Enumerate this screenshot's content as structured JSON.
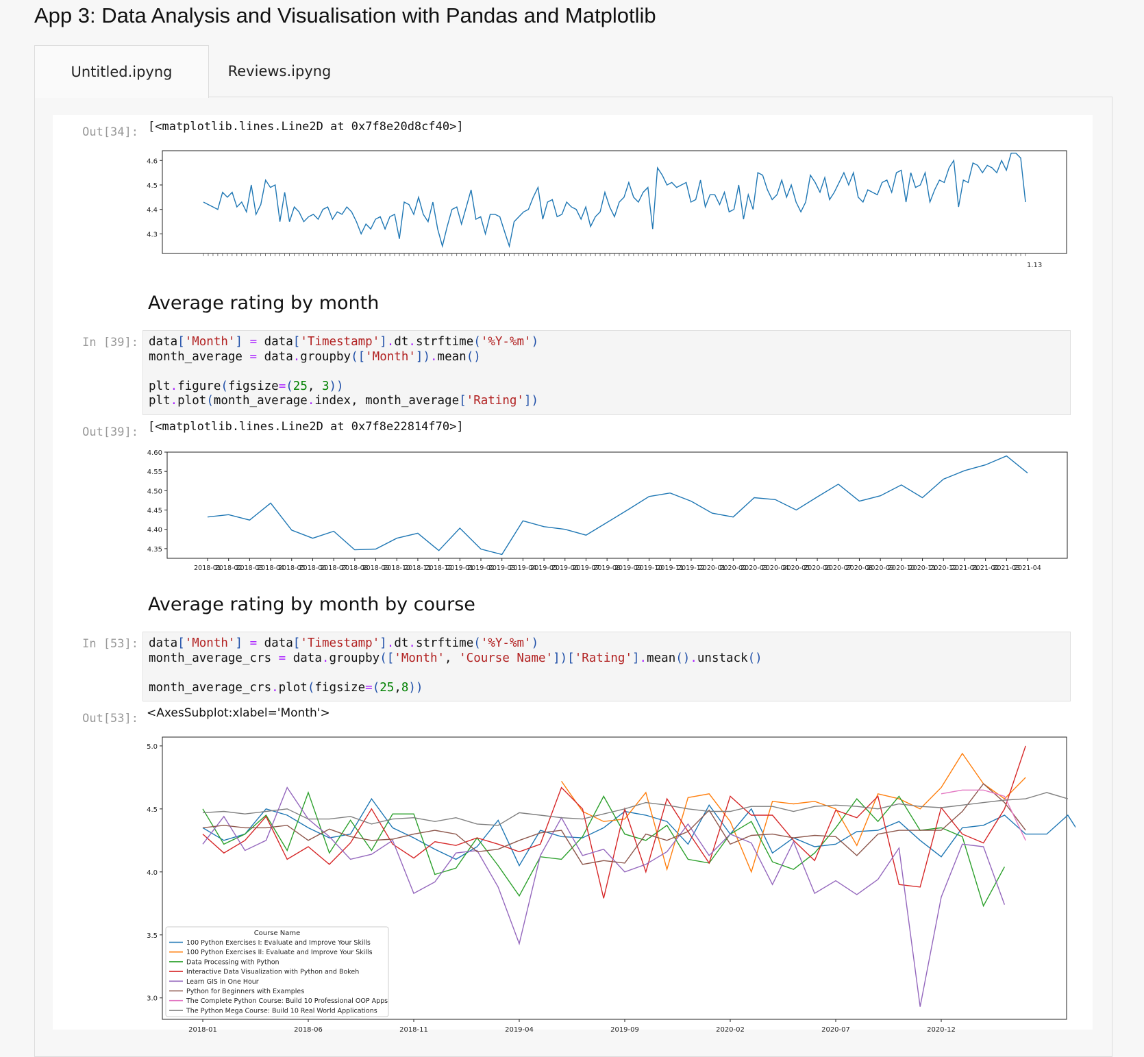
{
  "app_title": "App 3: Data Analysis and Visualisation with Pandas and Matplotlib",
  "tabs": [
    {
      "label": "Untitled.ipyng",
      "active": true
    },
    {
      "label": "Reviews.ipyng",
      "active": false
    }
  ],
  "cells": {
    "out34": {
      "prompt": "Out[34]:",
      "text": "[<matplotlib.lines.Line2D at 0x7f8e20d8cf40>]"
    },
    "heading1": "Average rating by month",
    "in39": {
      "prompt": "In [39]:",
      "code": [
        [
          [
            "k",
            "data"
          ],
          [
            "p",
            "["
          ],
          [
            "s",
            "'Month'"
          ],
          [
            "p",
            "]"
          ],
          [
            "k",
            " "
          ],
          [
            "o",
            "="
          ],
          [
            "k",
            " data"
          ],
          [
            "p",
            "["
          ],
          [
            "s",
            "'Timestamp'"
          ],
          [
            "p",
            "]"
          ],
          [
            "o",
            "."
          ],
          [
            "k",
            "dt"
          ],
          [
            "o",
            "."
          ],
          [
            "k",
            "strftime"
          ],
          [
            "p",
            "("
          ],
          [
            "s",
            "'%Y-%m'"
          ],
          [
            "p",
            ")"
          ]
        ],
        [
          [
            "k",
            "month_average "
          ],
          [
            "o",
            "="
          ],
          [
            "k",
            " data"
          ],
          [
            "o",
            "."
          ],
          [
            "k",
            "groupby"
          ],
          [
            "p",
            "(["
          ],
          [
            "s",
            "'Month'"
          ],
          [
            "p",
            "])"
          ],
          [
            "o",
            "."
          ],
          [
            "k",
            "mean"
          ],
          [
            "p",
            "()"
          ]
        ],
        [],
        [
          [
            "k",
            "plt"
          ],
          [
            "o",
            "."
          ],
          [
            "k",
            "figure"
          ],
          [
            "p",
            "("
          ],
          [
            "k",
            "figsize"
          ],
          [
            "o",
            "="
          ],
          [
            "p",
            "("
          ],
          [
            "n",
            "25"
          ],
          [
            "k",
            ", "
          ],
          [
            "n",
            "3"
          ],
          [
            "p",
            "))"
          ]
        ],
        [
          [
            "k",
            "plt"
          ],
          [
            "o",
            "."
          ],
          [
            "k",
            "plot"
          ],
          [
            "p",
            "("
          ],
          [
            "k",
            "month_average"
          ],
          [
            "o",
            "."
          ],
          [
            "k",
            "index"
          ],
          [
            "k",
            ", month_average"
          ],
          [
            "p",
            "["
          ],
          [
            "s",
            "'Rating'"
          ],
          [
            "p",
            "])"
          ]
        ]
      ]
    },
    "out39": {
      "prompt": "Out[39]:",
      "text": "[<matplotlib.lines.Line2D at 0x7f8e22814f70>]"
    },
    "heading2": "Average rating by month by course",
    "in53": {
      "prompt": "In [53]:",
      "code": [
        [
          [
            "k",
            "data"
          ],
          [
            "p",
            "["
          ],
          [
            "s",
            "'Month'"
          ],
          [
            "p",
            "]"
          ],
          [
            "k",
            " "
          ],
          [
            "o",
            "="
          ],
          [
            "k",
            " data"
          ],
          [
            "p",
            "["
          ],
          [
            "s",
            "'Timestamp'"
          ],
          [
            "p",
            "]"
          ],
          [
            "o",
            "."
          ],
          [
            "k",
            "dt"
          ],
          [
            "o",
            "."
          ],
          [
            "k",
            "strftime"
          ],
          [
            "p",
            "("
          ],
          [
            "s",
            "'%Y-%m'"
          ],
          [
            "p",
            ")"
          ]
        ],
        [
          [
            "k",
            "month_average_crs "
          ],
          [
            "o",
            "="
          ],
          [
            "k",
            " data"
          ],
          [
            "o",
            "."
          ],
          [
            "k",
            "groupby"
          ],
          [
            "p",
            "(["
          ],
          [
            "s",
            "'Month'"
          ],
          [
            "k",
            ", "
          ],
          [
            "s",
            "'Course Name'"
          ],
          [
            "p",
            "])["
          ],
          [
            "s",
            "'Rating'"
          ],
          [
            "p",
            "]"
          ],
          [
            "o",
            "."
          ],
          [
            "k",
            "mean"
          ],
          [
            "p",
            "()"
          ],
          [
            "o",
            "."
          ],
          [
            "k",
            "unstack"
          ],
          [
            "p",
            "()"
          ]
        ],
        [],
        [
          [
            "k",
            "month_average_crs"
          ],
          [
            "o",
            "."
          ],
          [
            "k",
            "plot"
          ],
          [
            "p",
            "("
          ],
          [
            "k",
            "figsize"
          ],
          [
            "o",
            "="
          ],
          [
            "p",
            "("
          ],
          [
            "n",
            "25"
          ],
          [
            "k",
            ","
          ],
          [
            "n",
            "8"
          ],
          [
            "p",
            "))"
          ]
        ]
      ]
    },
    "out53": {
      "prompt": "Out[53]:",
      "text": "<AxesSubplot:xlabel='Month'>"
    }
  },
  "colors": {
    "c0": "#1f77b4",
    "c1": "#ff7f0e",
    "c2": "#2ca02c",
    "c3": "#d62728",
    "c4": "#9467bd",
    "c5": "#8c564b",
    "c6": "#e377c2",
    "c7": "#7f7f7f"
  },
  "chart_data": [
    {
      "type": "line",
      "title": "",
      "x_tick_labels_note": "",
      "yticks": [
        4.3,
        4.4,
        4.5,
        4.6
      ],
      "ylim": [
        4.22,
        4.64
      ],
      "values": [
        4.43,
        4.42,
        4.41,
        4.4,
        4.47,
        4.45,
        4.47,
        4.41,
        4.43,
        4.39,
        4.5,
        4.38,
        4.42,
        4.52,
        4.49,
        4.5,
        4.35,
        4.47,
        4.35,
        4.41,
        4.39,
        4.35,
        4.37,
        4.38,
        4.36,
        4.4,
        4.41,
        4.36,
        4.39,
        4.38,
        4.41,
        4.39,
        4.35,
        4.3,
        4.34,
        4.32,
        4.36,
        4.37,
        4.32,
        4.37,
        4.38,
        4.28,
        4.43,
        4.42,
        4.38,
        4.45,
        4.38,
        4.35,
        4.43,
        4.32,
        4.25,
        4.33,
        4.4,
        4.41,
        4.34,
        4.41,
        4.48,
        4.36,
        4.37,
        4.3,
        4.38,
        4.38,
        4.37,
        4.31,
        4.25,
        4.35,
        4.37,
        4.39,
        4.4,
        4.45,
        4.49,
        4.36,
        4.43,
        4.44,
        4.37,
        4.38,
        4.43,
        4.41,
        4.4,
        4.36,
        4.41,
        4.33,
        4.37,
        4.39,
        4.47,
        4.41,
        4.37,
        4.43,
        4.45,
        4.51,
        4.45,
        4.43,
        4.47,
        4.49,
        4.32,
        4.57,
        4.54,
        4.5,
        4.51,
        4.49,
        4.5,
        4.51,
        4.43,
        4.44,
        4.52,
        4.41,
        4.46,
        4.46,
        4.42,
        4.47,
        4.39,
        4.4,
        4.5,
        4.36,
        4.46,
        4.4,
        4.55,
        4.54,
        4.48,
        4.44,
        4.46,
        4.52,
        4.45,
        4.5,
        4.43,
        4.39,
        4.43,
        4.54,
        4.51,
        4.47,
        4.53,
        4.44,
        4.47,
        4.51,
        4.55,
        4.5,
        4.55,
        4.45,
        4.43,
        4.48,
        4.47,
        4.46,
        4.51,
        4.52,
        4.47,
        4.55,
        4.56,
        4.43,
        4.55,
        4.49,
        4.5,
        4.55,
        4.43,
        4.48,
        4.52,
        4.51,
        4.57,
        4.6,
        4.41,
        4.52,
        4.51,
        4.59,
        4.58,
        4.55,
        4.58,
        4.57,
        4.55,
        4.6,
        4.56,
        4.63,
        4.63,
        4.61,
        4.43
      ],
      "xlabel_tail": "1.13"
    },
    {
      "type": "line",
      "categories": [
        "2018-01",
        "2018-02",
        "2018-03",
        "2018-04",
        "2018-05",
        "2018-06",
        "2018-07",
        "2018-08",
        "2018-09",
        "2018-10",
        "2018-11",
        "2018-12",
        "2019-01",
        "2019-02",
        "2019-03",
        "2019-04",
        "2019-05",
        "2019-06",
        "2019-07",
        "2019-08",
        "2019-09",
        "2019-10",
        "2019-11",
        "2019-12",
        "2020-01",
        "2020-02",
        "2020-03",
        "2020-04",
        "2020-05",
        "2020-06",
        "2020-07",
        "2020-08",
        "2020-09",
        "2020-10",
        "2020-11",
        "2020-12",
        "2021-01",
        "2021-02",
        "2021-03",
        "2021-04"
      ],
      "values": [
        4.432,
        4.438,
        4.424,
        4.468,
        4.398,
        4.377,
        4.395,
        4.347,
        4.349,
        4.377,
        4.39,
        4.345,
        4.403,
        4.349,
        4.335,
        4.422,
        4.407,
        4.4,
        4.385,
        4.418,
        4.451,
        4.485,
        4.494,
        4.473,
        4.442,
        4.432,
        4.482,
        4.477,
        4.45,
        4.484,
        4.517,
        4.473,
        4.487,
        4.515,
        4.482,
        4.53,
        4.552,
        4.567,
        4.59,
        4.546
      ],
      "yticks": [
        4.35,
        4.4,
        4.45,
        4.5,
        4.55,
        4.6
      ],
      "ylim": [
        4.325,
        4.6
      ]
    },
    {
      "type": "line",
      "xlabel": "Month",
      "x_tick_labels": [
        "2018-01",
        "2018-06",
        "2018-11",
        "2019-04",
        "2019-09",
        "2020-02",
        "2020-07",
        "2020-12"
      ],
      "yticks": [
        3.0,
        3.5,
        4.0,
        4.5,
        5.0
      ],
      "ylim": [
        2.83,
        5.07
      ],
      "legend_title": "Course Name",
      "legend_position": "lower-left",
      "series": [
        {
          "name": "100 Python Exercises I: Evaluate and Improve Your Skills",
          "start": 0,
          "values": [
            4.35,
            4.25,
            4.3,
            4.5,
            4.45,
            4.35,
            4.27,
            4.3,
            4.58,
            4.35,
            4.27,
            4.18,
            4.1,
            4.2,
            4.41,
            4.05,
            4.33,
            4.28,
            4.27,
            4.35,
            4.48,
            4.45,
            4.4,
            4.22,
            4.53,
            4.3,
            4.5,
            4.15,
            4.27,
            4.2,
            4.22,
            4.32,
            4.33,
            4.4,
            4.25,
            4.12,
            4.35,
            4.37,
            4.45,
            4.3,
            4.3,
            4.45,
            4.19,
            4.5
          ]
        },
        {
          "name": "100 Python Exercises II: Evaluate and Improve Your Skills",
          "start": 17,
          "values": [
            4.72,
            4.48,
            4.4,
            4.42,
            4.63,
            4.02,
            4.59,
            4.62,
            4.4,
            4.0,
            4.56,
            4.54,
            4.56,
            4.5,
            4.21,
            4.62,
            4.58,
            4.5,
            4.67,
            4.94,
            4.7,
            4.58,
            4.75
          ]
        },
        {
          "name": "Data Processing with Python",
          "start": 0,
          "values": [
            4.5,
            4.22,
            4.3,
            4.45,
            4.17,
            4.63,
            4.15,
            4.41,
            4.17,
            4.46,
            4.46,
            3.98,
            4.03,
            4.27,
            4.05,
            3.81,
            4.12,
            4.1,
            4.28,
            4.6,
            4.3,
            4.25,
            4.37,
            4.1,
            4.07,
            4.3,
            4.4,
            4.08,
            4.02,
            4.15,
            4.35,
            4.58,
            4.4,
            4.6,
            4.33,
            4.35,
            4.28,
            3.73,
            4.04
          ]
        },
        {
          "name": "Interactive Data Visualization with Python and Bokeh",
          "start": 0,
          "values": [
            4.3,
            4.15,
            4.25,
            4.44,
            4.1,
            4.2,
            4.06,
            4.23,
            4.5,
            4.22,
            4.11,
            4.24,
            4.21,
            4.27,
            4.22,
            4.16,
            4.22,
            4.67,
            4.5,
            3.79,
            4.5,
            4.0,
            4.58,
            4.32,
            4.07,
            4.6,
            4.45,
            4.45,
            4.25,
            4.09,
            4.49,
            4.43,
            4.6,
            3.9,
            3.88,
            4.51,
            4.3,
            4.23,
            4.5,
            5.0
          ]
        },
        {
          "name": "Learn GIS in One Hour",
          "start": 0,
          "values": [
            4.22,
            4.44,
            4.17,
            4.25,
            4.67,
            4.42,
            4.28,
            4.1,
            4.14,
            4.25,
            3.83,
            3.92,
            4.15,
            4.17,
            3.88,
            3.43,
            4.13,
            4.43,
            4.13,
            4.18,
            4.0,
            4.06,
            4.16,
            4.38,
            4.13,
            4.3,
            4.23,
            3.9,
            4.24,
            3.83,
            3.93,
            3.82,
            3.94,
            4.19,
            2.93,
            3.8,
            4.22,
            4.2,
            3.74
          ]
        },
        {
          "name": "Python for Beginners with Examples",
          "start": 0,
          "values": [
            4.35,
            4.37,
            4.35,
            4.35,
            4.37,
            4.25,
            4.34,
            4.28,
            4.25,
            4.26,
            4.3,
            4.33,
            4.3,
            4.16,
            4.18,
            4.25,
            4.31,
            4.33,
            4.06,
            4.09,
            4.07,
            4.3,
            4.25,
            4.32,
            4.49,
            4.22,
            4.29,
            4.3,
            4.27,
            4.29,
            4.28,
            4.13,
            4.3,
            4.33,
            4.33,
            4.33,
            4.48,
            4.7,
            4.55,
            4.33
          ]
        },
        {
          "name": "The Complete Python Course: Build 10 Professional OOP Apps",
          "start": 35,
          "values": [
            4.62,
            4.65,
            4.65,
            4.6,
            4.25
          ]
        },
        {
          "name": "The Python Mega Course: Build 10 Real World Applications",
          "start": 0,
          "values": [
            4.47,
            4.48,
            4.46,
            4.48,
            4.5,
            4.42,
            4.42,
            4.44,
            4.38,
            4.42,
            4.43,
            4.4,
            4.43,
            4.38,
            4.37,
            4.47,
            4.45,
            4.43,
            4.42,
            4.46,
            4.5,
            4.55,
            4.53,
            4.5,
            4.48,
            4.48,
            4.52,
            4.52,
            4.48,
            4.52,
            4.53,
            4.52,
            4.5,
            4.54,
            4.52,
            4.51,
            4.53,
            4.55,
            4.57,
            4.58,
            4.63,
            4.58
          ]
        }
      ]
    }
  ]
}
